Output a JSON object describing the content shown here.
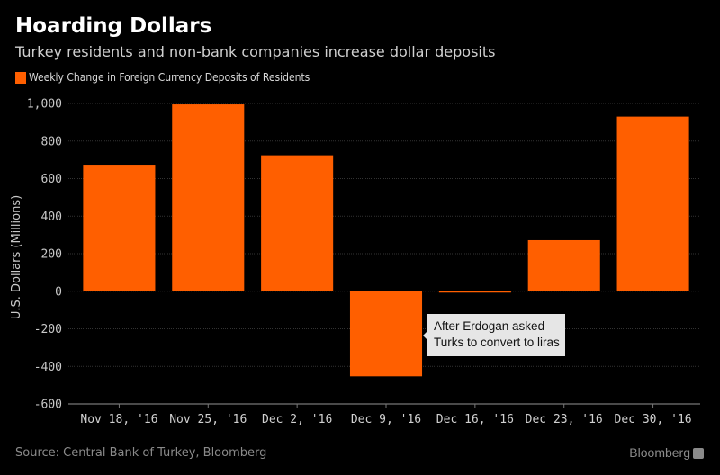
{
  "header": {
    "title": "Hoarding Dollars",
    "subtitle": "Turkey residents and non-bank companies increase dollar deposits"
  },
  "colors": {
    "bar": "#ff5f00",
    "background": "#000000",
    "grid": "#333333",
    "annotation_bg": "#e6e6e6"
  },
  "chart_data": {
    "type": "bar",
    "title": "Hoarding Dollars",
    "subtitle": "Turkey residents and non-bank companies increase dollar deposits",
    "legend": [
      "Weekly Change in Foreign Currency Deposits of Residents"
    ],
    "legend_position": "top-left",
    "categories": [
      "Nov 18, '16",
      "Nov 25, '16",
      "Dec 2, '16",
      "Dec 9, '16",
      "Dec 16, '16",
      "Dec 23, '16",
      "Dec 30, '16"
    ],
    "series": [
      {
        "name": "Weekly Change in Foreign Currency Deposits of Residents",
        "values": [
          674,
          995,
          724,
          -453,
          -5,
          272,
          930
        ]
      }
    ],
    "xlabel": "",
    "ylabel": "U.S. Dollars (Millions)",
    "ylim": [
      -600,
      1000
    ],
    "yticks": [
      1000,
      800,
      600,
      400,
      200,
      0,
      -200,
      -400,
      -600
    ],
    "ytick_labels": [
      "1,000",
      "800",
      "600",
      "400",
      "200",
      "0",
      "-200",
      "-400",
      "-600"
    ],
    "grid": true,
    "annotations": [
      {
        "category": "Dec 9, '16",
        "text_lines": [
          "After Erdogan asked",
          "Turks to convert to liras"
        ]
      }
    ]
  },
  "footer": {
    "source": "Source: Central Bank of Turkey, Bloomberg",
    "brand": "Bloomberg"
  }
}
